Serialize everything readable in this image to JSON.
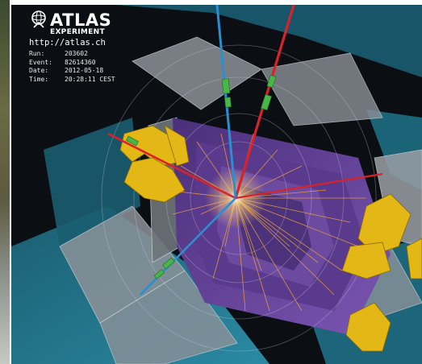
{
  "logo": {
    "title": "ATLAS",
    "subtitle": "EXPERIMENT",
    "url": "http://atlas.ch",
    "icon": "atlas-logo-icon"
  },
  "event_info": {
    "run_label": "Run:",
    "run_value": "203602",
    "event_label": "Event:",
    "event_value": "82614360",
    "date_label": "Date:",
    "date_value": "2012-05-18",
    "time_label": "Time:",
    "time_value": "20:28:11 CEST"
  },
  "colors": {
    "calorimeter_purple": "#6b4a9e",
    "muon_chamber_teal": "#1f6f86",
    "endcap_yellow": "#e2b716",
    "track_orange": "#f2a33a",
    "muon_red": "#d8232a",
    "muon_blue": "#2a8fd0"
  }
}
